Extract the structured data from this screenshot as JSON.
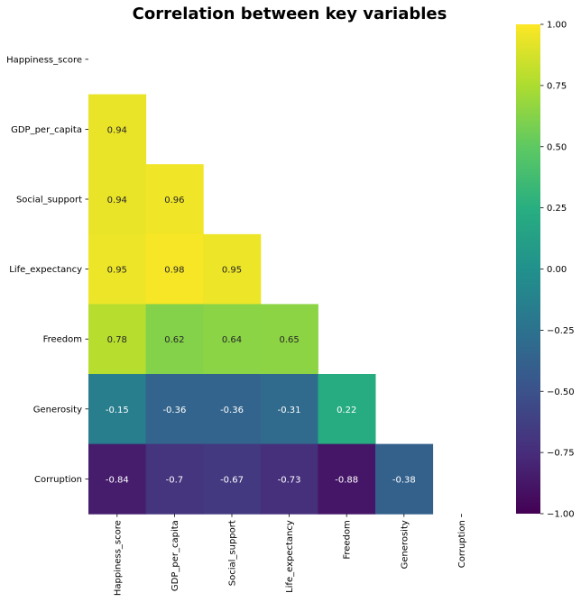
{
  "chart_data": {
    "type": "heatmap",
    "title": "Correlation between key variables",
    "variables": [
      "Happiness_score",
      "GDP_per_capita",
      "Social_support",
      "Life_expectancy",
      "Freedom",
      "Generosity",
      "Corruption"
    ],
    "mask": "upper-triangle-including-diagonal",
    "cells": [
      {
        "row": "GDP_per_capita",
        "col": "Happiness_score",
        "value": 0.94,
        "label": "0.94"
      },
      {
        "row": "Social_support",
        "col": "Happiness_score",
        "value": 0.94,
        "label": "0.94"
      },
      {
        "row": "Social_support",
        "col": "GDP_per_capita",
        "value": 0.96,
        "label": "0.96"
      },
      {
        "row": "Life_expectancy",
        "col": "Happiness_score",
        "value": 0.95,
        "label": "0.95"
      },
      {
        "row": "Life_expectancy",
        "col": "GDP_per_capita",
        "value": 0.98,
        "label": "0.98"
      },
      {
        "row": "Life_expectancy",
        "col": "Social_support",
        "value": 0.95,
        "label": "0.95"
      },
      {
        "row": "Freedom",
        "col": "Happiness_score",
        "value": 0.78,
        "label": "0.78"
      },
      {
        "row": "Freedom",
        "col": "GDP_per_capita",
        "value": 0.62,
        "label": "0.62"
      },
      {
        "row": "Freedom",
        "col": "Social_support",
        "value": 0.64,
        "label": "0.64"
      },
      {
        "row": "Freedom",
        "col": "Life_expectancy",
        "value": 0.65,
        "label": "0.65"
      },
      {
        "row": "Generosity",
        "col": "Happiness_score",
        "value": -0.15,
        "label": "-0.15"
      },
      {
        "row": "Generosity",
        "col": "GDP_per_capita",
        "value": -0.36,
        "label": "-0.36"
      },
      {
        "row": "Generosity",
        "col": "Social_support",
        "value": -0.36,
        "label": "-0.36"
      },
      {
        "row": "Generosity",
        "col": "Life_expectancy",
        "value": -0.31,
        "label": "-0.31"
      },
      {
        "row": "Generosity",
        "col": "Freedom",
        "value": 0.22,
        "label": "0.22"
      },
      {
        "row": "Corruption",
        "col": "Happiness_score",
        "value": -0.84,
        "label": "-0.84"
      },
      {
        "row": "Corruption",
        "col": "GDP_per_capita",
        "value": -0.7,
        "label": "-0.7"
      },
      {
        "row": "Corruption",
        "col": "Social_support",
        "value": -0.67,
        "label": "-0.67"
      },
      {
        "row": "Corruption",
        "col": "Life_expectancy",
        "value": -0.73,
        "label": "-0.73"
      },
      {
        "row": "Corruption",
        "col": "Freedom",
        "value": -0.88,
        "label": "-0.88"
      },
      {
        "row": "Corruption",
        "col": "Generosity",
        "value": -0.38,
        "label": "-0.38"
      }
    ],
    "colorbar": {
      "colormap": "viridis",
      "range": [
        -1.0,
        1.0
      ],
      "ticks": [
        1.0,
        0.75,
        0.5,
        0.25,
        0.0,
        -0.25,
        -0.5,
        -0.75,
        -1.0
      ],
      "tick_labels": [
        "1.00",
        "0.75",
        "0.50",
        "0.25",
        "0.00",
        "−0.25",
        "−0.50",
        "−0.75",
        "−1.00"
      ]
    }
  }
}
